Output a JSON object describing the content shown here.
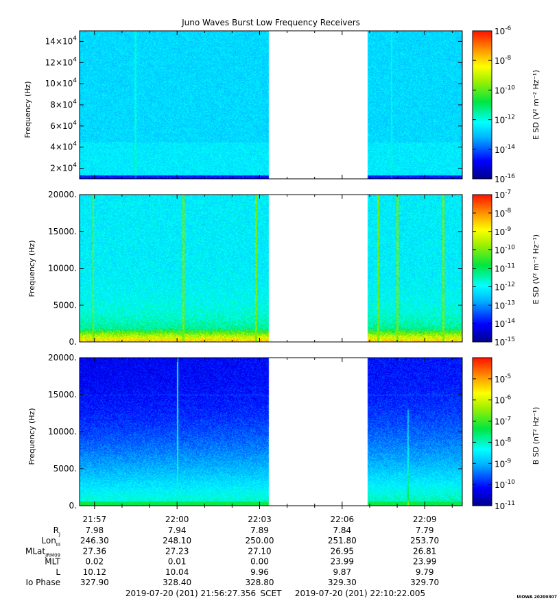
{
  "chart_data": {
    "type": "heatmap",
    "title": "Juno Waves Burst Low Frequency Receivers",
    "time_ticks": [
      "21:57",
      "22:00",
      "22:03",
      "22:06",
      "22:09"
    ],
    "time_range": {
      "start": "21:56:27.356",
      "end": "22:10:22.005"
    },
    "data_gap": {
      "start": "22:03:20",
      "end": "22:06:55"
    },
    "panels": [
      {
        "id": "efield-high",
        "ylabel": "Frequency (Hz)",
        "ylim": [
          10000,
          150000
        ],
        "yticks": [
          {
            "value": 20000,
            "mant": "2×10",
            "exp": "4"
          },
          {
            "value": 40000,
            "mant": "4×10",
            "exp": "4"
          },
          {
            "value": 60000,
            "mant": "6×10",
            "exp": "4"
          },
          {
            "value": 80000,
            "mant": "8×10",
            "exp": "4"
          },
          {
            "value": 100000,
            "mant": "10×10",
            "exp": "4"
          },
          {
            "value": 120000,
            "mant": "12×10",
            "exp": "4"
          },
          {
            "value": 140000,
            "mant": "14×10",
            "exp": "4"
          }
        ],
        "colorbar": {
          "label": "E SD (V² m⁻² Hz⁻¹)",
          "range_exp": [
            -16,
            -6
          ],
          "ticks": [
            -6,
            -8,
            -10,
            -12,
            -14,
            -16
          ]
        }
      },
      {
        "id": "efield-low",
        "ylabel": "Frequency (Hz)",
        "ylim": [
          0,
          20000
        ],
        "yticks": [
          {
            "value": 0,
            "label": "0."
          },
          {
            "value": 5000,
            "label": "5000."
          },
          {
            "value": 10000,
            "label": "10000."
          },
          {
            "value": 15000,
            "label": "15000."
          },
          {
            "value": 20000,
            "label": "20000."
          }
        ],
        "colorbar": {
          "label": "E SD (V² m⁻² Hz⁻¹)",
          "range_exp": [
            -15,
            -7
          ],
          "ticks": [
            -7,
            -8,
            -9,
            -10,
            -11,
            -12,
            -13,
            -14,
            -15
          ]
        }
      },
      {
        "id": "bfield",
        "ylabel": "Frequency (Hz)",
        "ylim": [
          0,
          20000
        ],
        "yticks": [
          {
            "value": 0,
            "label": "0."
          },
          {
            "value": 5000,
            "label": "5000."
          },
          {
            "value": 10000,
            "label": "10000."
          },
          {
            "value": 15000,
            "label": "15000."
          },
          {
            "value": 20000,
            "label": "20000."
          }
        ],
        "colorbar": {
          "label": "B SD (nT² Hz⁻¹)",
          "range_exp": [
            -11,
            -4
          ],
          "ticks": [
            -5,
            -6,
            -7,
            -8,
            -9,
            -10,
            -11
          ]
        }
      }
    ],
    "ephemeris": [
      {
        "name": "Rj",
        "label": "R",
        "sub": "J",
        "values": [
          "7.98",
          "7.94",
          "7.89",
          "7.84",
          "7.79"
        ]
      },
      {
        "name": "LonIII",
        "label": "Lon",
        "sub": "III",
        "values": [
          "246.30",
          "248.10",
          "250.00",
          "251.80",
          "253.70"
        ]
      },
      {
        "name": "MLat",
        "label": "MLat",
        "sub": "JRM09",
        "values": [
          "27.36",
          "27.23",
          "27.10",
          "26.95",
          "26.81"
        ]
      },
      {
        "name": "MLT",
        "label": "MLT",
        "sub": "",
        "values": [
          "0.02",
          "0.01",
          "0.00",
          "23.99",
          "23.99"
        ]
      },
      {
        "name": "L",
        "label": "L",
        "sub": "",
        "values": [
          "10.12",
          "10.04",
          "9.96",
          "9.87",
          "9.79"
        ]
      },
      {
        "name": "IoPhase",
        "label": "Io Phase",
        "sub": "",
        "values": [
          "327.90",
          "328.40",
          "328.80",
          "329.30",
          "329.70"
        ]
      }
    ],
    "footer": {
      "start": "2019-07-20 (201) 21:56:27.356",
      "middle": "SCET",
      "end": "2019-07-20 (201) 22:10:22.005",
      "credit": "UIOWA 20200307"
    }
  }
}
